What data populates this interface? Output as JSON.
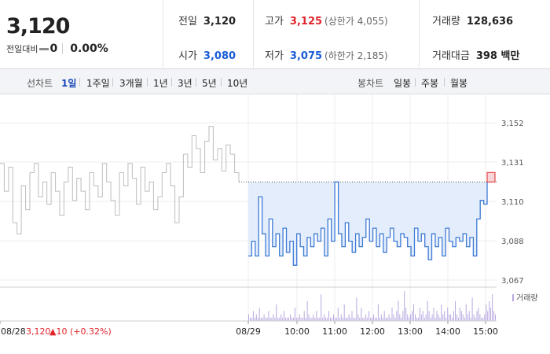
{
  "header": {
    "price": "3,120",
    "change_label": "전일대비",
    "change_value": "0",
    "change_rate": "0.00%",
    "stats": {
      "prev_close_label": "전일",
      "prev_close": "3,120",
      "high_label": "고가",
      "high": "3,125",
      "upper_limit": "(상한가 4,055)",
      "volume_label": "거래량",
      "volume": "128,636",
      "open_label": "시가",
      "open": "3,080",
      "low_label": "저가",
      "low": "3,075",
      "lower_limit": "(하한가 2,185)",
      "amount_label": "거래대금",
      "amount": "398 백만"
    }
  },
  "periods": {
    "line_label": "선차트",
    "line_items": [
      "1일",
      "1주일",
      "3개월",
      "1년",
      "3년",
      "5년",
      "10년"
    ],
    "active": "1일",
    "candle_label": "봉차트",
    "candle_items": [
      "일봉",
      "주봉",
      "월봉"
    ]
  },
  "colors": {
    "line": "#3d7ad6",
    "fill": "#e3edfb",
    "prev_line": "#bdbdbd",
    "up": "#e2242a",
    "volume": "#b9a8e0",
    "grid": "#ececec"
  },
  "chart_data": {
    "type": "line",
    "y_ticks": [
      "3,152",
      "3,131",
      "3,110",
      "3,088",
      "3,067"
    ],
    "ylim": [
      3067,
      3152
    ],
    "x_ticks": [
      "08/28",
      "08/29",
      "10:00",
      "11:00",
      "12:00",
      "13:00",
      "14:00",
      "15:00"
    ],
    "reference_price": 3120,
    "previous_day": {
      "date": "08/28",
      "close": "3,120",
      "change": "▲10",
      "change_rate": "(+0.32%)",
      "values": [
        3130,
        3115,
        3128,
        3098,
        3092,
        3118,
        3105,
        3125,
        3130,
        3112,
        3120,
        3108,
        3125,
        3115,
        3102,
        3120,
        3128,
        3110,
        3122,
        3115,
        3105,
        3125,
        3118,
        3112,
        3130,
        3120,
        3110,
        3102,
        3125,
        3118,
        3130,
        3122,
        3108,
        3128,
        3115,
        3120,
        3105,
        3112,
        3125,
        3130,
        3118,
        3098,
        3112,
        3135,
        3128,
        3145,
        3138,
        3125,
        3142,
        3150,
        3132,
        3138,
        3126,
        3140,
        3135,
        3125,
        3120
      ]
    },
    "current_day": {
      "date": "08/29",
      "values": [
        3080,
        3088,
        3080,
        3112,
        3092,
        3080,
        3100,
        3085,
        3092,
        3080,
        3095,
        3082,
        3088,
        3075,
        3092,
        3085,
        3080,
        3090,
        3085,
        3092,
        3088,
        3095,
        3080,
        3100,
        3088,
        3120,
        3092,
        3085,
        3098,
        3088,
        3082,
        3092,
        3085,
        3090,
        3100,
        3088,
        3095,
        3085,
        3092,
        3082,
        3090,
        3095,
        3088,
        3085,
        3092,
        3090,
        3085,
        3080,
        3095,
        3088,
        3092,
        3085,
        3078,
        3092,
        3085,
        3090,
        3080,
        3095,
        3088,
        3085,
        3090,
        3088,
        3092,
        3085,
        3090,
        3080,
        3100,
        3110,
        3108,
        3120
      ],
      "last": 3120
    },
    "volume_label": "거래량",
    "volume": [
      2,
      1,
      1,
      3,
      1,
      2,
      1,
      4,
      1,
      1,
      2,
      1,
      1,
      3,
      1,
      1,
      2,
      1,
      5,
      1,
      1,
      2,
      1,
      3,
      1,
      1,
      1,
      2,
      1,
      1,
      4,
      1,
      1,
      2,
      1,
      1,
      3,
      1,
      6,
      2,
      1,
      1,
      2,
      1,
      3,
      1,
      1,
      8,
      1,
      2,
      1,
      1,
      3,
      1,
      1,
      2,
      1,
      1,
      4,
      1,
      2,
      1,
      5,
      1,
      1,
      2,
      1,
      3,
      1,
      1,
      7,
      2,
      1,
      4,
      1,
      1,
      2,
      1,
      3,
      1,
      1,
      2,
      1,
      1,
      5,
      1,
      2,
      1,
      3,
      1,
      1,
      2,
      1,
      4,
      2,
      1,
      3,
      6,
      2,
      1,
      3,
      9,
      4,
      2,
      1,
      2,
      3,
      5,
      2,
      1,
      1,
      4,
      2,
      3,
      1,
      2,
      6,
      3,
      1,
      2,
      4,
      1,
      3,
      2,
      1,
      5,
      2,
      3,
      1,
      4,
      2,
      2,
      1,
      3,
      6,
      2,
      1,
      4,
      3,
      2,
      1,
      5,
      2,
      3,
      1,
      7,
      2,
      1,
      3,
      4,
      2,
      1,
      1,
      2,
      5,
      3,
      6,
      4,
      8,
      3,
      2
    ]
  }
}
